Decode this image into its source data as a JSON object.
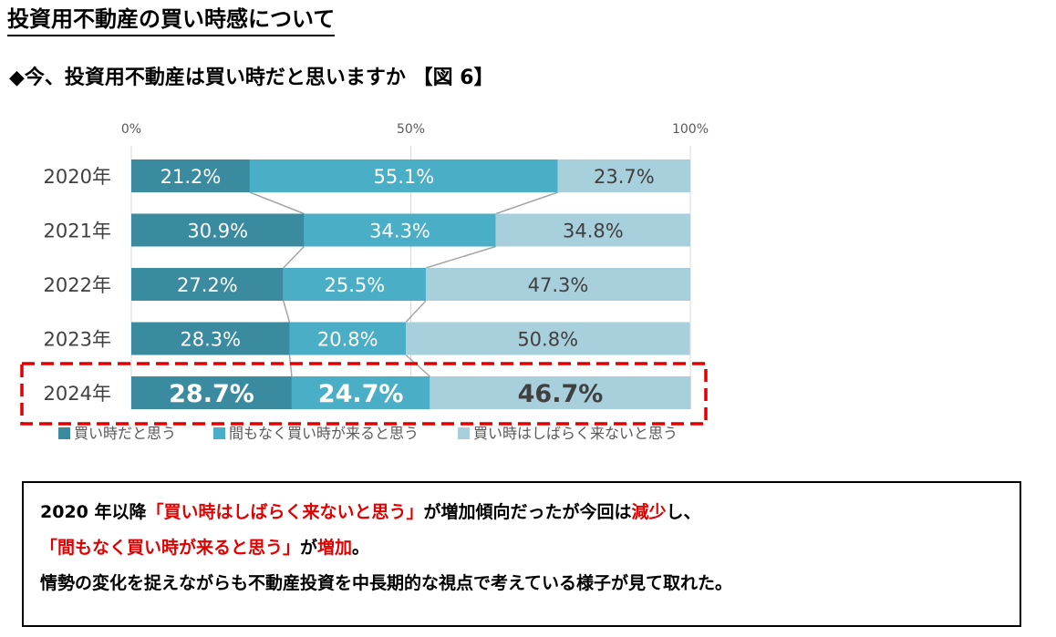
{
  "page_title": "投資用不動産の買い時感について",
  "subtitle": "◆今、投資用不動産は買い時だと思いますか 【図 6】",
  "colors": {
    "series1": "#3a8ba0",
    "series2": "#4aaec6",
    "series3": "#a8cfdc",
    "highlight": "#e00000"
  },
  "chart_data": {
    "type": "bar",
    "orientation": "horizontal",
    "stacked": true,
    "categories": [
      "2020年",
      "2021年",
      "2022年",
      "2023年",
      "2024年"
    ],
    "series": [
      {
        "name": "買い時だと思う",
        "values": [
          21.2,
          30.9,
          27.2,
          28.3,
          28.7
        ]
      },
      {
        "name": "間もなく買い時が来ると思う",
        "values": [
          55.1,
          34.3,
          25.5,
          20.8,
          24.7
        ]
      },
      {
        "name": "買い時はしばらく来ないと思う",
        "values": [
          23.7,
          34.8,
          47.3,
          50.8,
          46.7
        ]
      }
    ],
    "data_labels": [
      [
        "21.2%",
        "55.1%",
        "23.7%"
      ],
      [
        "30.9%",
        "34.3%",
        "34.8%"
      ],
      [
        "27.2%",
        "25.5%",
        "47.3%"
      ],
      [
        "28.3%",
        "20.8%",
        "50.8%"
      ],
      [
        "28.7%",
        "24.7%",
        "46.7%"
      ]
    ],
    "x_ticks": [
      "0%",
      "50%",
      "100%"
    ],
    "xlim": [
      0,
      100
    ],
    "grid": true,
    "legend_position": "bottom",
    "highlighted_category": "2024年"
  },
  "summary": {
    "line1": [
      {
        "text": "2020 年以降",
        "hl": false
      },
      {
        "text": "「買い時はしばらく来ないと思う」",
        "hl": true
      },
      {
        "text": "が増加傾向だったが今回は",
        "hl": false
      },
      {
        "text": "減少",
        "hl": true
      },
      {
        "text": "し、",
        "hl": false
      }
    ],
    "line2": [
      {
        "text": "「間もなく買い時が来ると思う」",
        "hl": true
      },
      {
        "text": "が",
        "hl": false
      },
      {
        "text": "増加",
        "hl": true
      },
      {
        "text": "。",
        "hl": false
      }
    ],
    "line3": [
      {
        "text": "情勢の変化を捉えながらも不動産投資を中長期的な視点で考えている様子が見て取れた。",
        "hl": false
      }
    ]
  }
}
